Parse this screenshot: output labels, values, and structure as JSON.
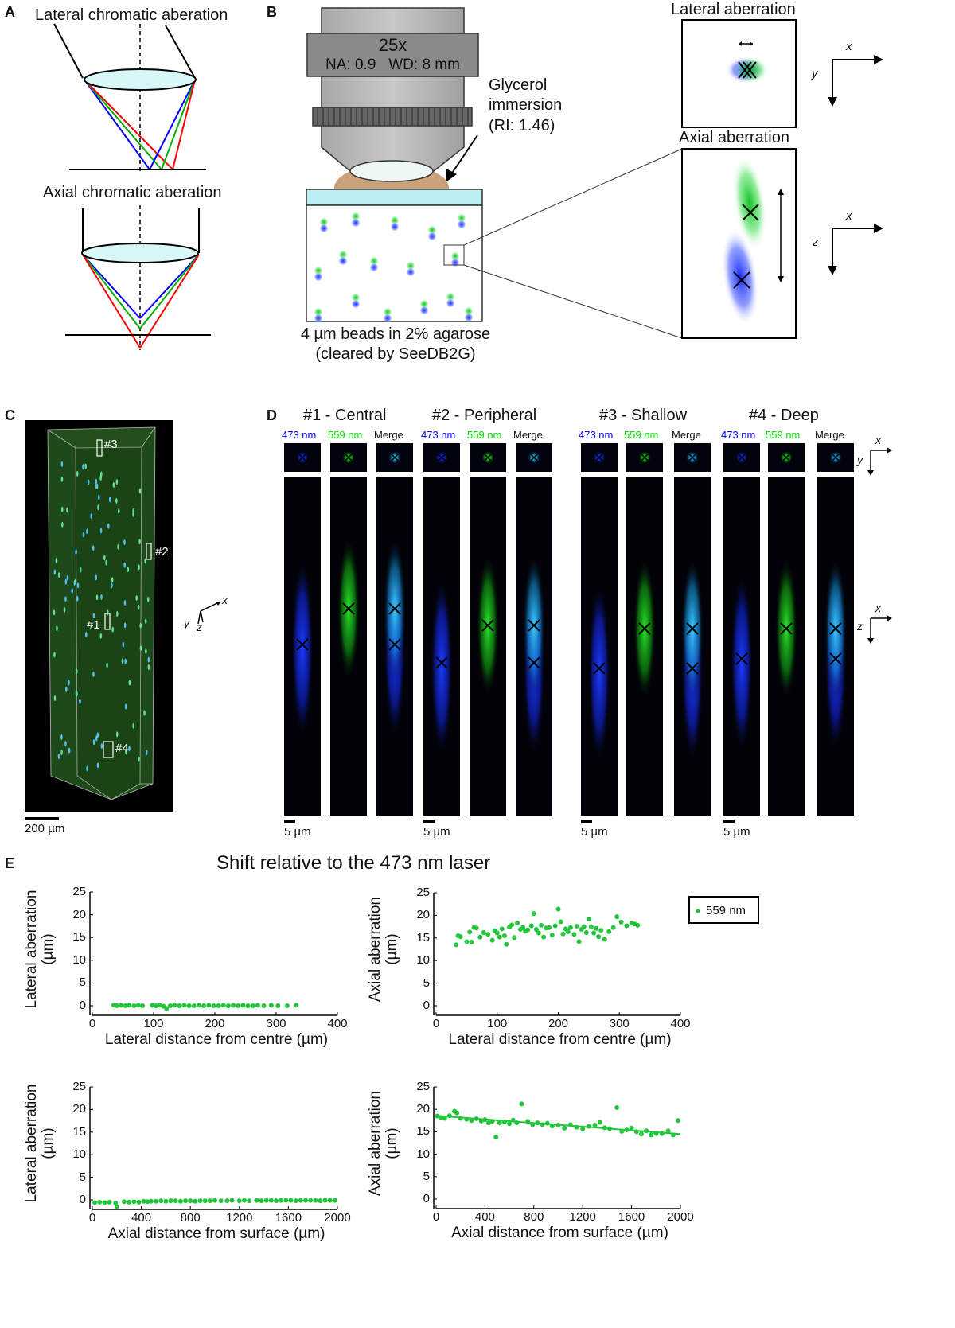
{
  "panels": {
    "A": {
      "label": "A",
      "lateral_title": "Lateral chromatic aberation",
      "axial_title": "Axial chromatic aberation",
      "ray_colors": [
        "#0000ff",
        "#00c000",
        "#ff0000"
      ]
    },
    "B": {
      "label": "B",
      "objective_mag": "25x",
      "objective_specs": "NA: 0.9   WD: 8 mm",
      "immersion_label": [
        "Glycerol",
        "immersion",
        "(RI: 1.46)"
      ],
      "sample_caption": [
        "4 µm beads in 2% agarose",
        "(cleared by SeeDB2G)"
      ],
      "lateral_box_title": "Lateral aberration",
      "axial_box_title": "Axial aberration",
      "axes_xy": {
        "x": "x",
        "y": "y"
      },
      "axes_xz": {
        "x": "x",
        "z": "z"
      }
    },
    "C": {
      "label": "C",
      "roi_labels": [
        "#1",
        "#2",
        "#3",
        "#4"
      ],
      "axes": {
        "x": "x",
        "y": "y",
        "z": "z"
      },
      "scale_bar": "200 µm"
    },
    "D": {
      "label": "D",
      "groups": [
        {
          "title": "#1 - Central",
          "scale_bar": "5 µm"
        },
        {
          "title": "#2 - Peripheral",
          "scale_bar": "5 µm"
        },
        {
          "title": "#3 - Shallow",
          "scale_bar": "5 µm"
        },
        {
          "title": "#4 - Deep",
          "scale_bar": "5 µm"
        }
      ],
      "channels": [
        "473 nm",
        "559 nm",
        "Merge"
      ],
      "channel_colors": [
        "#0000ff",
        "#00e000",
        "#111111"
      ],
      "axes_xy": {
        "x": "x",
        "y": "y"
      },
      "axes_xz": {
        "x": "x",
        "z": "z"
      }
    },
    "E": {
      "label": "E",
      "title": "Shift relative to the 473 nm laser",
      "legend": "559 nm",
      "point_color": "#22c63a"
    }
  },
  "chart_data": [
    {
      "type": "scatter",
      "xlabel": "Lateral distance from centre (µm)",
      "ylabel": [
        "Lateral aberration",
        "(µm)"
      ],
      "xlim": [
        0,
        400
      ],
      "ylim": [
        0,
        25
      ],
      "xticks": [
        0,
        100,
        200,
        300,
        400
      ],
      "yticks": [
        0,
        5,
        10,
        15,
        20,
        25
      ],
      "series": [
        {
          "name": "559 nm",
          "x": [
            35,
            40,
            47,
            54,
            60,
            68,
            75,
            82,
            98,
            104,
            110,
            116,
            121,
            127,
            134,
            142,
            150,
            158,
            166,
            174,
            182,
            190,
            198,
            206,
            214,
            222,
            230,
            238,
            246,
            254,
            262,
            270,
            280,
            292,
            303,
            318,
            333
          ],
          "y": [
            0.1,
            0,
            0.1,
            0,
            0.1,
            0,
            0.1,
            0,
            0.1,
            0,
            0.1,
            -0.1,
            -0.6,
            0,
            0.1,
            0,
            0.1,
            0,
            0,
            0.1,
            0,
            0.1,
            0,
            0,
            0.1,
            0,
            0.1,
            0,
            0.1,
            0,
            0,
            0.1,
            0,
            0.1,
            0,
            0,
            0.1
          ]
        }
      ]
    },
    {
      "type": "scatter",
      "xlabel": "Lateral distance from centre (µm)",
      "ylabel": [
        "Axial aberration",
        "(µm)"
      ],
      "xlim": [
        0,
        400
      ],
      "ylim": [
        0,
        25
      ],
      "xticks": [
        0,
        100,
        200,
        300,
        400
      ],
      "yticks": [
        0,
        5,
        10,
        15,
        20,
        25
      ],
      "legend": "top-right",
      "series": [
        {
          "name": "559 nm",
          "x": [
            33,
            36,
            40,
            50,
            55,
            58,
            62,
            66,
            72,
            78,
            85,
            92,
            96,
            100,
            104,
            108,
            112,
            115,
            120,
            124,
            128,
            133,
            138,
            142,
            146,
            150,
            156,
            160,
            164,
            168,
            172,
            176,
            180,
            185,
            190,
            195,
            200,
            204,
            208,
            212,
            216,
            220,
            226,
            230,
            234,
            238,
            242,
            246,
            250,
            254,
            258,
            262,
            266,
            270,
            276,
            283,
            290,
            296,
            303,
            312,
            320,
            325,
            330
          ],
          "y": [
            13.5,
            15.5,
            15.3,
            14.2,
            16.3,
            14.1,
            17.3,
            17.2,
            15.2,
            16.2,
            15.8,
            14.5,
            16.6,
            16.1,
            15.2,
            17.0,
            15.5,
            13.6,
            17.4,
            17.9,
            15.1,
            18.3,
            16.9,
            17.3,
            16.5,
            16.8,
            17.7,
            20.4,
            16.9,
            16.1,
            17.8,
            15.2,
            17.2,
            17.3,
            15.6,
            17.7,
            21.4,
            18.6,
            15.9,
            17.0,
            16.4,
            17.3,
            15.8,
            17.6,
            14.2,
            16.9,
            17.5,
            16.2,
            19.2,
            17.5,
            16.1,
            17.1,
            15.3,
            16.7,
            14.7,
            16.4,
            17.3,
            19.7,
            18.5,
            17.7,
            18.3,
            18.1,
            17.8
          ]
        }
      ]
    },
    {
      "type": "scatter",
      "xlabel": "Axial distance from surface (µm)",
      "ylabel": [
        "Lateral aberration",
        "(µm)"
      ],
      "xlim": [
        0,
        2000
      ],
      "ylim": [
        0,
        25
      ],
      "xticks": [
        0,
        400,
        800,
        1200,
        1600,
        2000
      ],
      "yticks": [
        0,
        5,
        10,
        15,
        20,
        25
      ],
      "series": [
        {
          "name": "559 nm",
          "x": [
            20,
            60,
            100,
            140,
            190,
            200,
            260,
            300,
            340,
            380,
            420,
            450,
            480,
            520,
            560,
            600,
            640,
            680,
            720,
            760,
            800,
            840,
            880,
            920,
            960,
            1000,
            1050,
            1100,
            1140,
            1200,
            1240,
            1280,
            1340,
            1380,
            1420,
            1460,
            1500,
            1540,
            1580,
            1620,
            1660,
            1700,
            1740,
            1780,
            1820,
            1860,
            1900,
            1940,
            1980
          ],
          "y": [
            -0.6,
            -0.5,
            -0.6,
            -0.5,
            -0.7,
            -1.5,
            -0.4,
            -0.5,
            -0.4,
            -0.5,
            -0.3,
            -0.4,
            -0.3,
            -0.3,
            -0.2,
            -0.3,
            -0.2,
            -0.2,
            -0.3,
            -0.2,
            -0.2,
            -0.3,
            -0.2,
            -0.2,
            -0.2,
            -0.1,
            -0.2,
            -0.2,
            -0.1,
            -0.2,
            -0.1,
            -0.2,
            -0.1,
            -0.2,
            -0.1,
            -0.1,
            -0.2,
            -0.1,
            -0.1,
            -0.1,
            -0.2,
            -0.1,
            -0.1,
            -0.1,
            -0.1,
            -0.2,
            -0.1,
            -0.1,
            -0.1
          ]
        }
      ]
    },
    {
      "type": "scatter",
      "xlabel": "Axial distance from surface (µm)",
      "ylabel": [
        "Axial aberration",
        "(µm)"
      ],
      "xlim": [
        0,
        2000
      ],
      "ylim": [
        0,
        25
      ],
      "xticks": [
        0,
        400,
        800,
        1200,
        1600,
        2000
      ],
      "yticks": [
        0,
        5,
        10,
        15,
        20,
        25
      ],
      "trendline": {
        "x": [
          0,
          2000
        ],
        "y": [
          18.6,
          14.5
        ]
      },
      "series": [
        {
          "name": "559 nm",
          "x": [
            10,
            40,
            70,
            110,
            150,
            170,
            200,
            250,
            290,
            330,
            370,
            400,
            430,
            460,
            490,
            520,
            560,
            600,
            630,
            660,
            700,
            750,
            790,
            830,
            870,
            910,
            950,
            1000,
            1050,
            1100,
            1150,
            1200,
            1250,
            1300,
            1340,
            1380,
            1420,
            1480,
            1520,
            1560,
            1600,
            1640,
            1680,
            1720,
            1760,
            1800,
            1850,
            1900,
            1940,
            1980
          ],
          "y": [
            18.5,
            18.2,
            18.0,
            18.6,
            19.6,
            19.2,
            18.0,
            17.8,
            17.5,
            17.9,
            17.4,
            17.7,
            17.0,
            17.3,
            13.8,
            17.0,
            17.2,
            16.8,
            17.6,
            17.0,
            21.2,
            17.3,
            16.6,
            17.0,
            16.6,
            16.9,
            16.3,
            16.5,
            15.8,
            16.6,
            16.0,
            15.6,
            16.2,
            16.5,
            17.1,
            15.9,
            15.7,
            20.4,
            15.1,
            15.4,
            15.8,
            15.0,
            14.5,
            15.2,
            14.3,
            14.6,
            14.6,
            15.2,
            14.3,
            17.5
          ]
        }
      ]
    }
  ]
}
